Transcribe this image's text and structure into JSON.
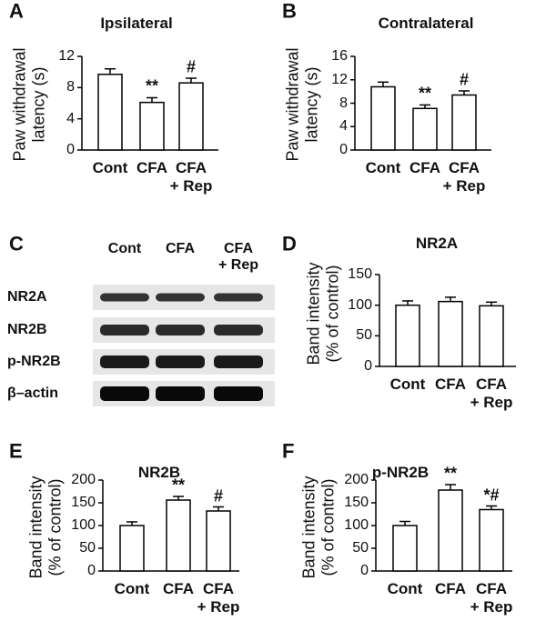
{
  "chart_data": [
    {
      "type": "bar",
      "panel": "A",
      "title": "Ipsilateral",
      "ylabel": "Paw withdrawal\nlatency (s)",
      "categories": [
        "Cont",
        "CFA",
        "CFA\n+ Rep"
      ],
      "values": [
        9.7,
        6.1,
        8.6
      ],
      "errors": [
        0.7,
        0.6,
        0.6
      ],
      "annotations": [
        null,
        "**",
        "#"
      ],
      "color": "#ffffff",
      "edgecolor": "#000000",
      "ylim": [
        0,
        12
      ],
      "yticks": [
        0,
        4,
        8,
        12
      ]
    },
    {
      "type": "bar",
      "panel": "B",
      "title": "Contralateral",
      "ylabel": "Paw withdrawal\nlatency (s)",
      "categories": [
        "Cont",
        "CFA",
        "CFA\n+ Rep"
      ],
      "values": [
        10.8,
        7.1,
        9.4
      ],
      "errors": [
        0.8,
        0.6,
        0.7
      ],
      "annotations": [
        null,
        "**",
        "#"
      ],
      "color": "#ffffff",
      "edgecolor": "#000000",
      "ylim": [
        0,
        16
      ],
      "yticks": [
        0,
        4,
        8,
        12,
        16
      ]
    },
    {
      "type": "bar",
      "panel": "D",
      "title": "NR2A",
      "ylabel": "Band intensity\n(% of control)",
      "categories": [
        "Cont",
        "CFA",
        "CFA\n+ Rep"
      ],
      "values": [
        100,
        106,
        99
      ],
      "errors": [
        7,
        7,
        6
      ],
      "annotations": [
        null,
        null,
        null
      ],
      "color": "#ffffff",
      "edgecolor": "#000000",
      "ylim": [
        0,
        150
      ],
      "yticks": [
        0,
        50,
        100,
        150
      ]
    },
    {
      "type": "bar",
      "panel": "E",
      "title": "NR2B",
      "ylabel": "Band intensity\n(% of control)",
      "categories": [
        "Cont",
        "CFA",
        "CFA\n+ Rep"
      ],
      "values": [
        100,
        156,
        132
      ],
      "errors": [
        8,
        8,
        9
      ],
      "annotations": [
        null,
        "**",
        "#"
      ],
      "color": "#ffffff",
      "edgecolor": "#000000",
      "ylim": [
        0,
        200
      ],
      "yticks": [
        0,
        50,
        100,
        150,
        200
      ]
    },
    {
      "type": "bar",
      "panel": "F",
      "title": "p-NR2B",
      "ylabel": "Band intensity\n(% of control)",
      "categories": [
        "Cont",
        "CFA",
        "CFA\n+ Rep"
      ],
      "values": [
        100,
        178,
        135
      ],
      "errors": [
        9,
        12,
        8
      ],
      "annotations": [
        null,
        "**",
        "*#"
      ],
      "color": "#ffffff",
      "edgecolor": "#000000",
      "ylim": [
        0,
        200
      ],
      "yticks": [
        0,
        50,
        100,
        150,
        200
      ]
    }
  ],
  "blot": {
    "panel": "C",
    "columns": [
      "Cont",
      "CFA",
      "CFA\n+ Rep"
    ],
    "rows": [
      "NR2A",
      "NR2B",
      "p-NR2B",
      "β–actin"
    ]
  }
}
